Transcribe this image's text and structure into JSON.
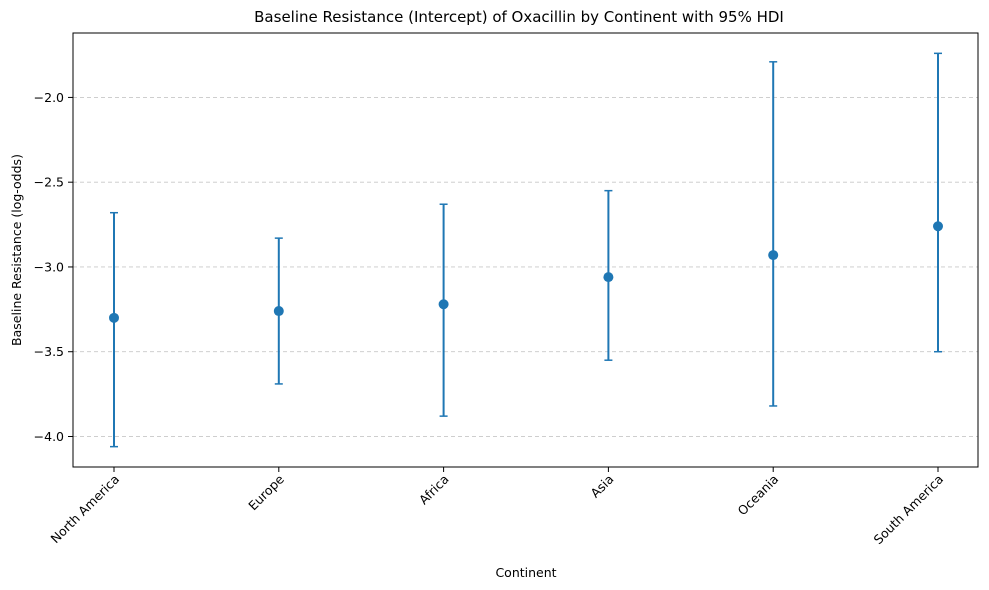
{
  "chart_data": {
    "type": "scatter",
    "title": "Baseline Resistance (Intercept) of Oxacillin by Continent with 95% HDI",
    "xlabel": "Continent",
    "ylabel": "Baseline Resistance (log-odds)",
    "categories": [
      "North America",
      "Europe",
      "Africa",
      "Asia",
      "Oceania",
      "South America"
    ],
    "series": [
      {
        "values": [
          -3.3,
          -3.26,
          -3.22,
          -3.06,
          -2.93,
          -2.76
        ],
        "lower": [
          -4.06,
          -3.69,
          -3.88,
          -3.55,
          -3.82,
          -3.5
        ],
        "upper": [
          -2.68,
          -2.83,
          -2.63,
          -2.55,
          -1.79,
          -1.74
        ]
      }
    ],
    "ylim": [
      -4.18,
      -1.62
    ],
    "yticks": [
      -4.0,
      -3.5,
      -3.0,
      -2.5,
      -2.0
    ],
    "ytick_labels": [
      "−4.0",
      "−3.5",
      "−3.0",
      "−2.5",
      "−2.0"
    ],
    "grid": "y-dashed",
    "colors": {
      "series": "#1f77b4",
      "grid": "#c8c8c8"
    }
  }
}
